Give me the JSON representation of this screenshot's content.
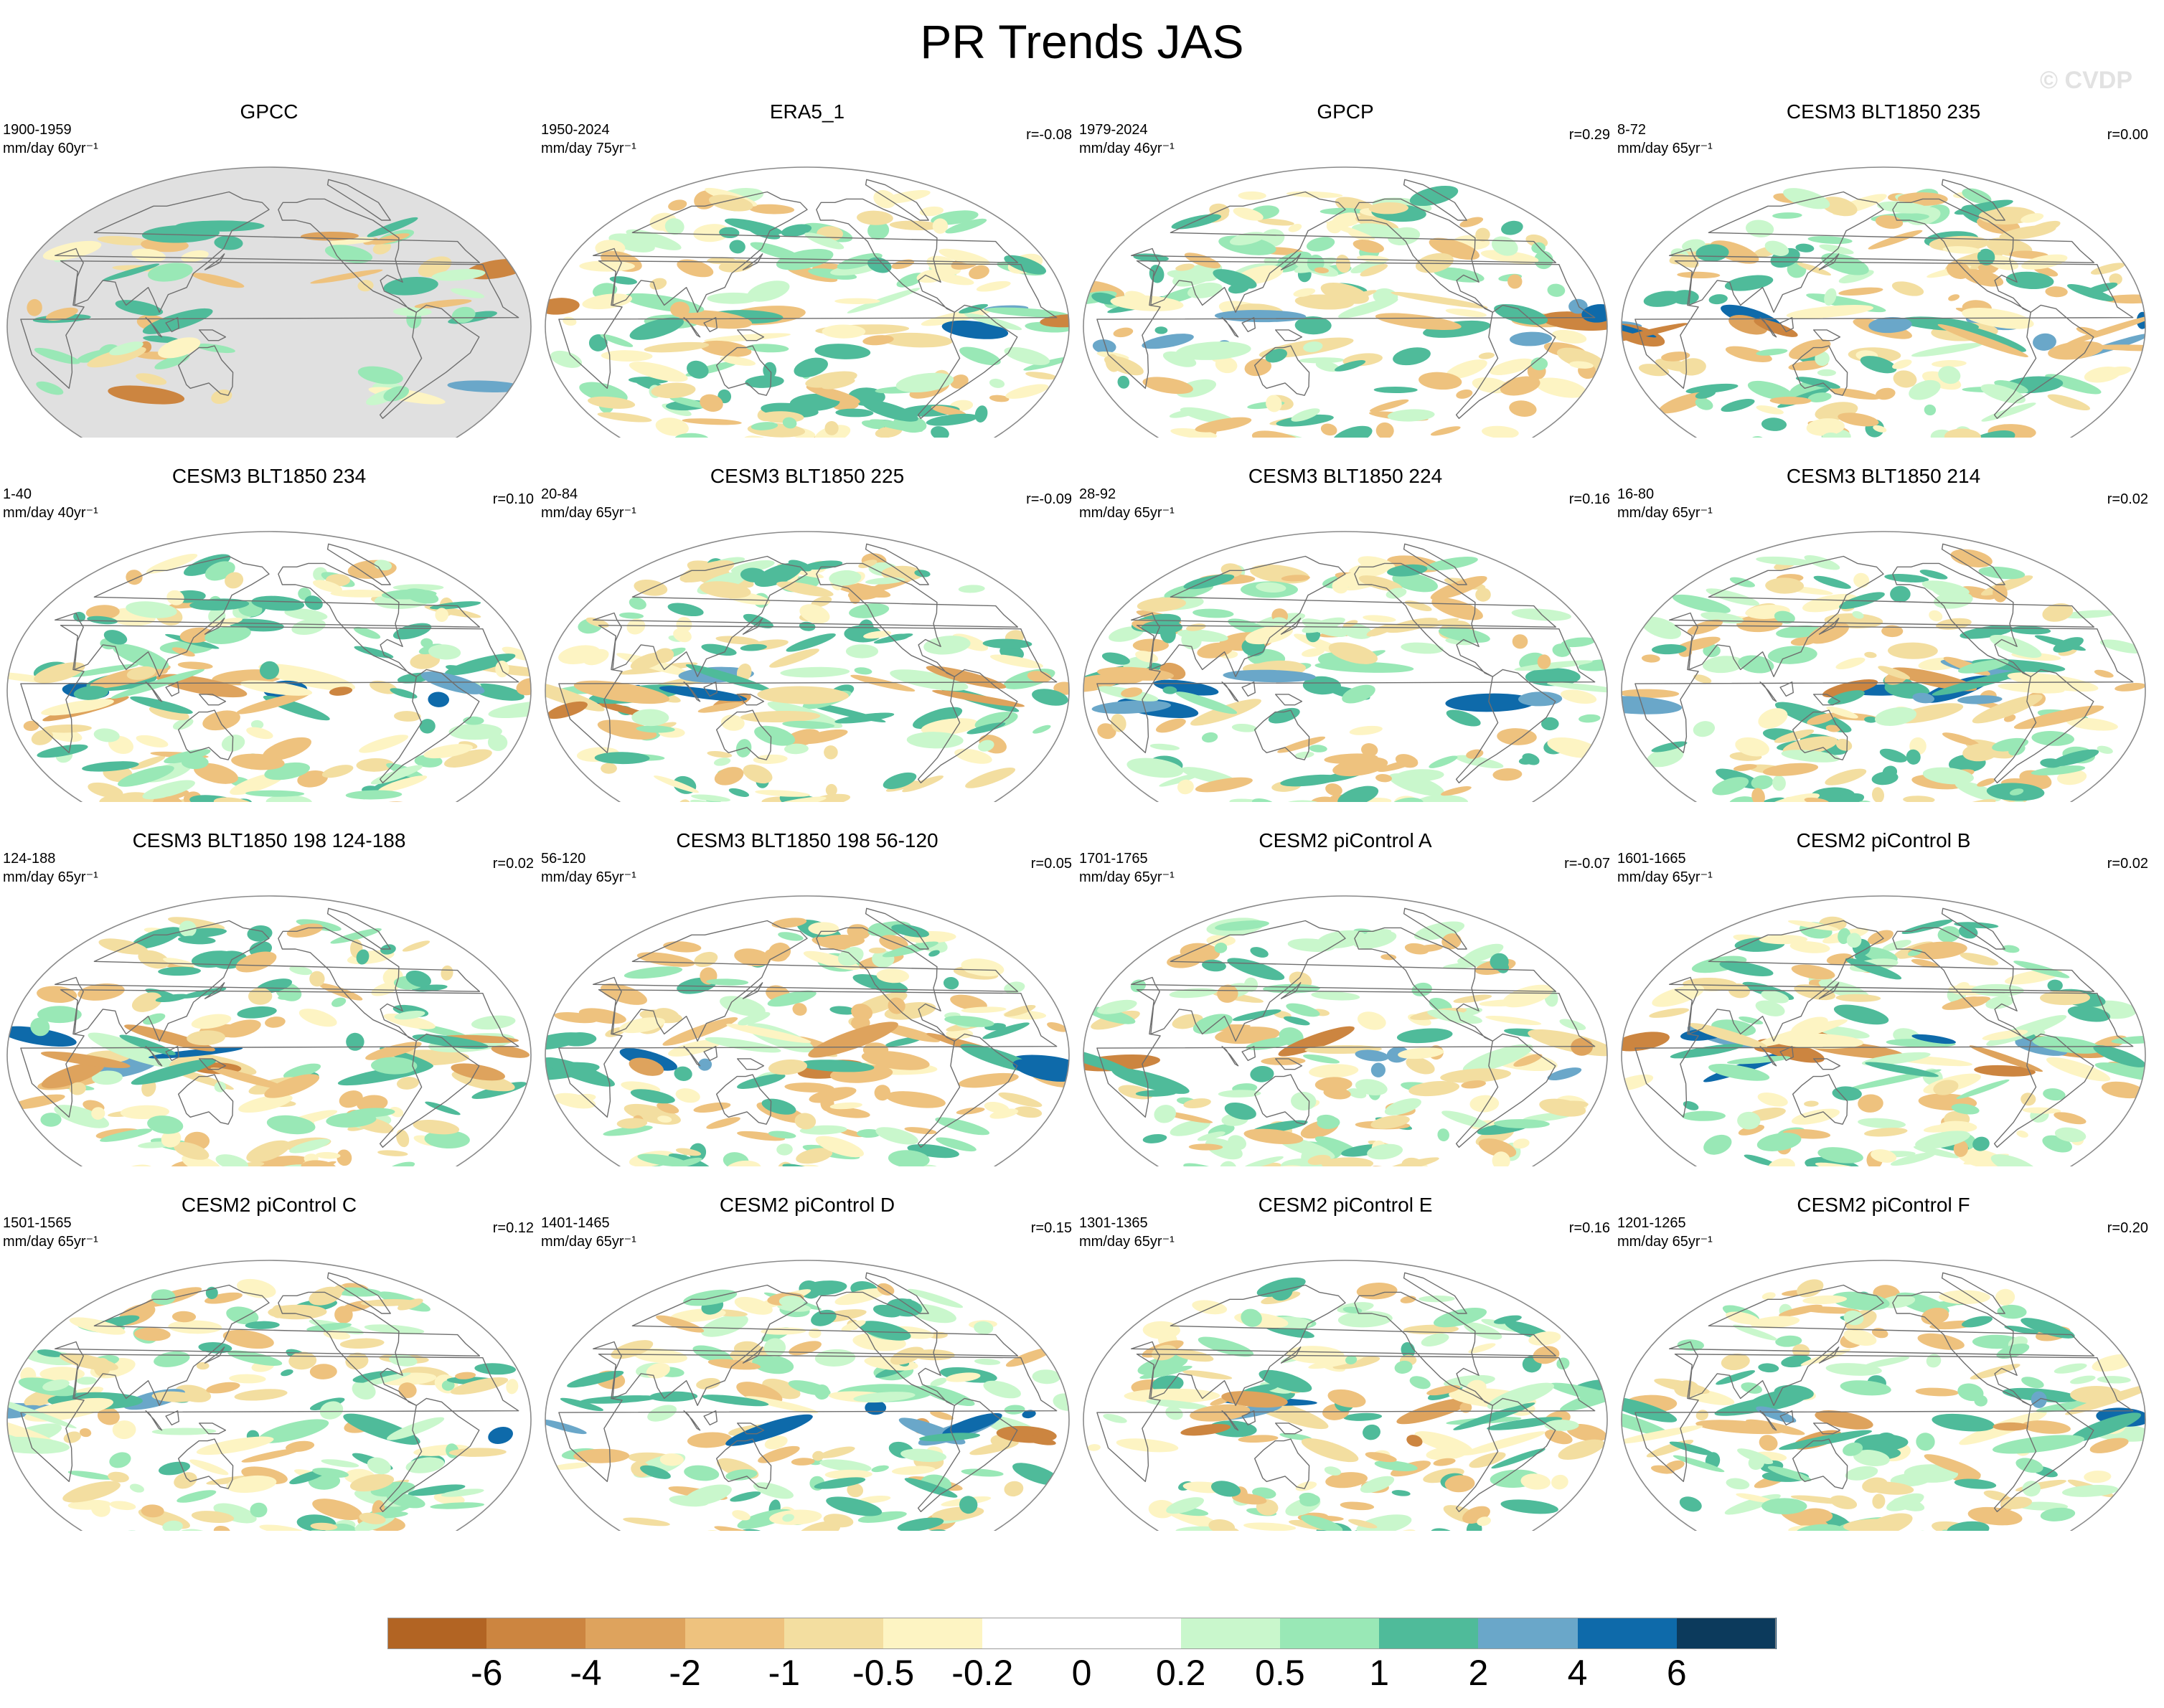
{
  "title": "PR Trends JAS",
  "watermark": "© CVDP",
  "colors": {
    "land": "#e0e0e0",
    "coast": "#6e6e6e",
    "frame": "#8a8a8a",
    "palette": [
      "#b26423",
      "#cc8540",
      "#dea35d",
      "#eec27e",
      "#f3dea0",
      "#fdf4c3",
      "#ffffff",
      "#ffffff",
      "#c9f7cc",
      "#99e8b6",
      "#4fbb9a",
      "#6aa7c9",
      "#0e6aaa",
      "#0c3a5c"
    ]
  },
  "colorbar": {
    "labels": [
      "-6",
      "-4",
      "-2",
      "-1",
      "-0.5",
      "-0.2",
      "0",
      "0.2",
      "0.5",
      "1",
      "2",
      "4",
      "6"
    ]
  },
  "panels": [
    {
      "title": "GPCC",
      "period": "1900-1959",
      "units": "mm/day 60yr⁻¹",
      "r": ""
    },
    {
      "title": "ERA5_1",
      "period": "1950-2024",
      "units": "mm/day 75yr⁻¹",
      "r": "r=-0.08"
    },
    {
      "title": "GPCP",
      "period": "1979-2024",
      "units": "mm/day 46yr⁻¹",
      "r": "r=0.29"
    },
    {
      "title": "CESM3 BLT1850 235",
      "period": "8-72",
      "units": "mm/day 65yr⁻¹",
      "r": "r=0.00"
    },
    {
      "title": "CESM3 BLT1850 234",
      "period": "1-40",
      "units": "mm/day 40yr⁻¹",
      "r": "r=0.10"
    },
    {
      "title": "CESM3 BLT1850 225",
      "period": "20-84",
      "units": "mm/day 65yr⁻¹",
      "r": "r=-0.09"
    },
    {
      "title": "CESM3 BLT1850 224",
      "period": "28-92",
      "units": "mm/day 65yr⁻¹",
      "r": "r=0.16"
    },
    {
      "title": "CESM3 BLT1850 214",
      "period": "16-80",
      "units": "mm/day 65yr⁻¹",
      "r": "r=0.02"
    },
    {
      "title": "CESM3 BLT1850 198 124-188",
      "period": "124-188",
      "units": "mm/day 65yr⁻¹",
      "r": "r=0.02"
    },
    {
      "title": "CESM3 BLT1850 198 56-120",
      "period": "56-120",
      "units": "mm/day 65yr⁻¹",
      "r": "r=0.05"
    },
    {
      "title": "CESM2 piControl A",
      "period": "1701-1765",
      "units": "mm/day 65yr⁻¹",
      "r": "r=-0.07"
    },
    {
      "title": "CESM2 piControl B",
      "period": "1601-1665",
      "units": "mm/day 65yr⁻¹",
      "r": "r=0.02"
    },
    {
      "title": "CESM2 piControl C",
      "period": "1501-1565",
      "units": "mm/day 65yr⁻¹",
      "r": "r=0.12"
    },
    {
      "title": "CESM2 piControl D",
      "period": "1401-1465",
      "units": "mm/day 65yr⁻¹",
      "r": "r=0.15"
    },
    {
      "title": "CESM2 piControl E",
      "period": "1301-1365",
      "units": "mm/day 65yr⁻¹",
      "r": "r=0.16"
    },
    {
      "title": "CESM2 piControl F",
      "period": "1201-1265",
      "units": "mm/day 65yr⁻¹",
      "r": "r=0.20"
    }
  ]
}
